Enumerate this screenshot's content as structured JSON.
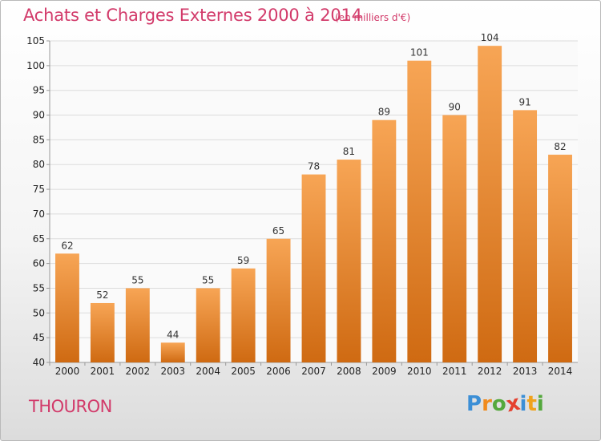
{
  "header": {
    "title": "Achats et Charges Externes 2000 à 2014",
    "subtitle": "(en milliers d'€)"
  },
  "footer": {
    "place": "THOURON",
    "brand_letters": [
      "P",
      "r",
      "o",
      "x",
      "i",
      "t",
      "i"
    ],
    "brand_colors": [
      "#3c8fd6",
      "#f08a1c",
      "#54a83c",
      "#e5402f",
      "#3c8fd6",
      "#f0a21c",
      "#54a83c"
    ]
  },
  "chart_data": {
    "type": "bar",
    "title": "Achats et Charges Externes 2000 à 2014",
    "subtitle": "(en milliers d'€)",
    "xlabel": "",
    "ylabel": "",
    "categories": [
      "2000",
      "2001",
      "2002",
      "2003",
      "2004",
      "2005",
      "2006",
      "2007",
      "2008",
      "2009",
      "2010",
      "2011",
      "2012",
      "2013",
      "2014"
    ],
    "values": [
      62,
      52,
      55,
      44,
      55,
      59,
      65,
      78,
      81,
      89,
      101,
      90,
      104,
      91,
      82
    ],
    "ylim": [
      40,
      105
    ],
    "yticks": [
      40,
      45,
      50,
      55,
      60,
      65,
      70,
      75,
      80,
      85,
      90,
      95,
      100,
      105
    ],
    "grid": true,
    "bar_color_top": "#f7a555",
    "bar_color_bottom": "#cf6a12"
  }
}
